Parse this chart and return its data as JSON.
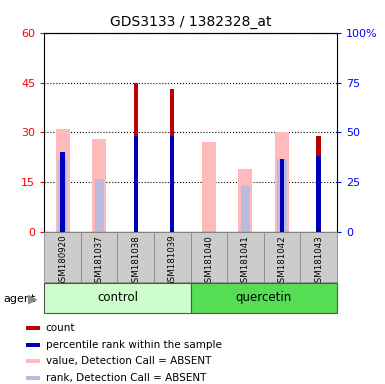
{
  "title": "GDS3133 / 1382328_at",
  "samples": [
    "GSM180920",
    "GSM181037",
    "GSM181038",
    "GSM181039",
    "GSM181040",
    "GSM181041",
    "GSM181042",
    "GSM181043"
  ],
  "groups": [
    "control",
    "control",
    "control",
    "control",
    "quercetin",
    "quercetin",
    "quercetin",
    "quercetin"
  ],
  "count_values": [
    0,
    0,
    45,
    43,
    0,
    0,
    0,
    29
  ],
  "percentile_values": [
    24,
    0,
    29,
    29,
    0,
    0,
    22,
    23
  ],
  "absent_value_values": [
    31,
    28,
    0,
    0,
    27,
    19,
    30,
    0
  ],
  "absent_rank_values": [
    22,
    16,
    0,
    0,
    0,
    14,
    22,
    0
  ],
  "ylim_left": [
    0,
    60
  ],
  "ylim_right": [
    0,
    100
  ],
  "yticks_left": [
    0,
    15,
    30,
    45,
    60
  ],
  "yticks_right": [
    0,
    25,
    50,
    75,
    100
  ],
  "ytick_labels_right": [
    "0",
    "25",
    "50",
    "75",
    "100%"
  ],
  "color_count": "#bb0000",
  "color_percentile": "#0000bb",
  "color_absent_value": "#ffbbbb",
  "color_absent_rank": "#bbbbdd",
  "color_control_bg": "#ccffcc",
  "color_quercetin_bg": "#55dd55",
  "color_sample_bg": "#cccccc",
  "legend_items": [
    "count",
    "percentile rank within the sample",
    "value, Detection Call = ABSENT",
    "rank, Detection Call = ABSENT"
  ],
  "legend_colors": [
    "#bb0000",
    "#0000bb",
    "#ffbbbb",
    "#bbbbdd"
  ]
}
